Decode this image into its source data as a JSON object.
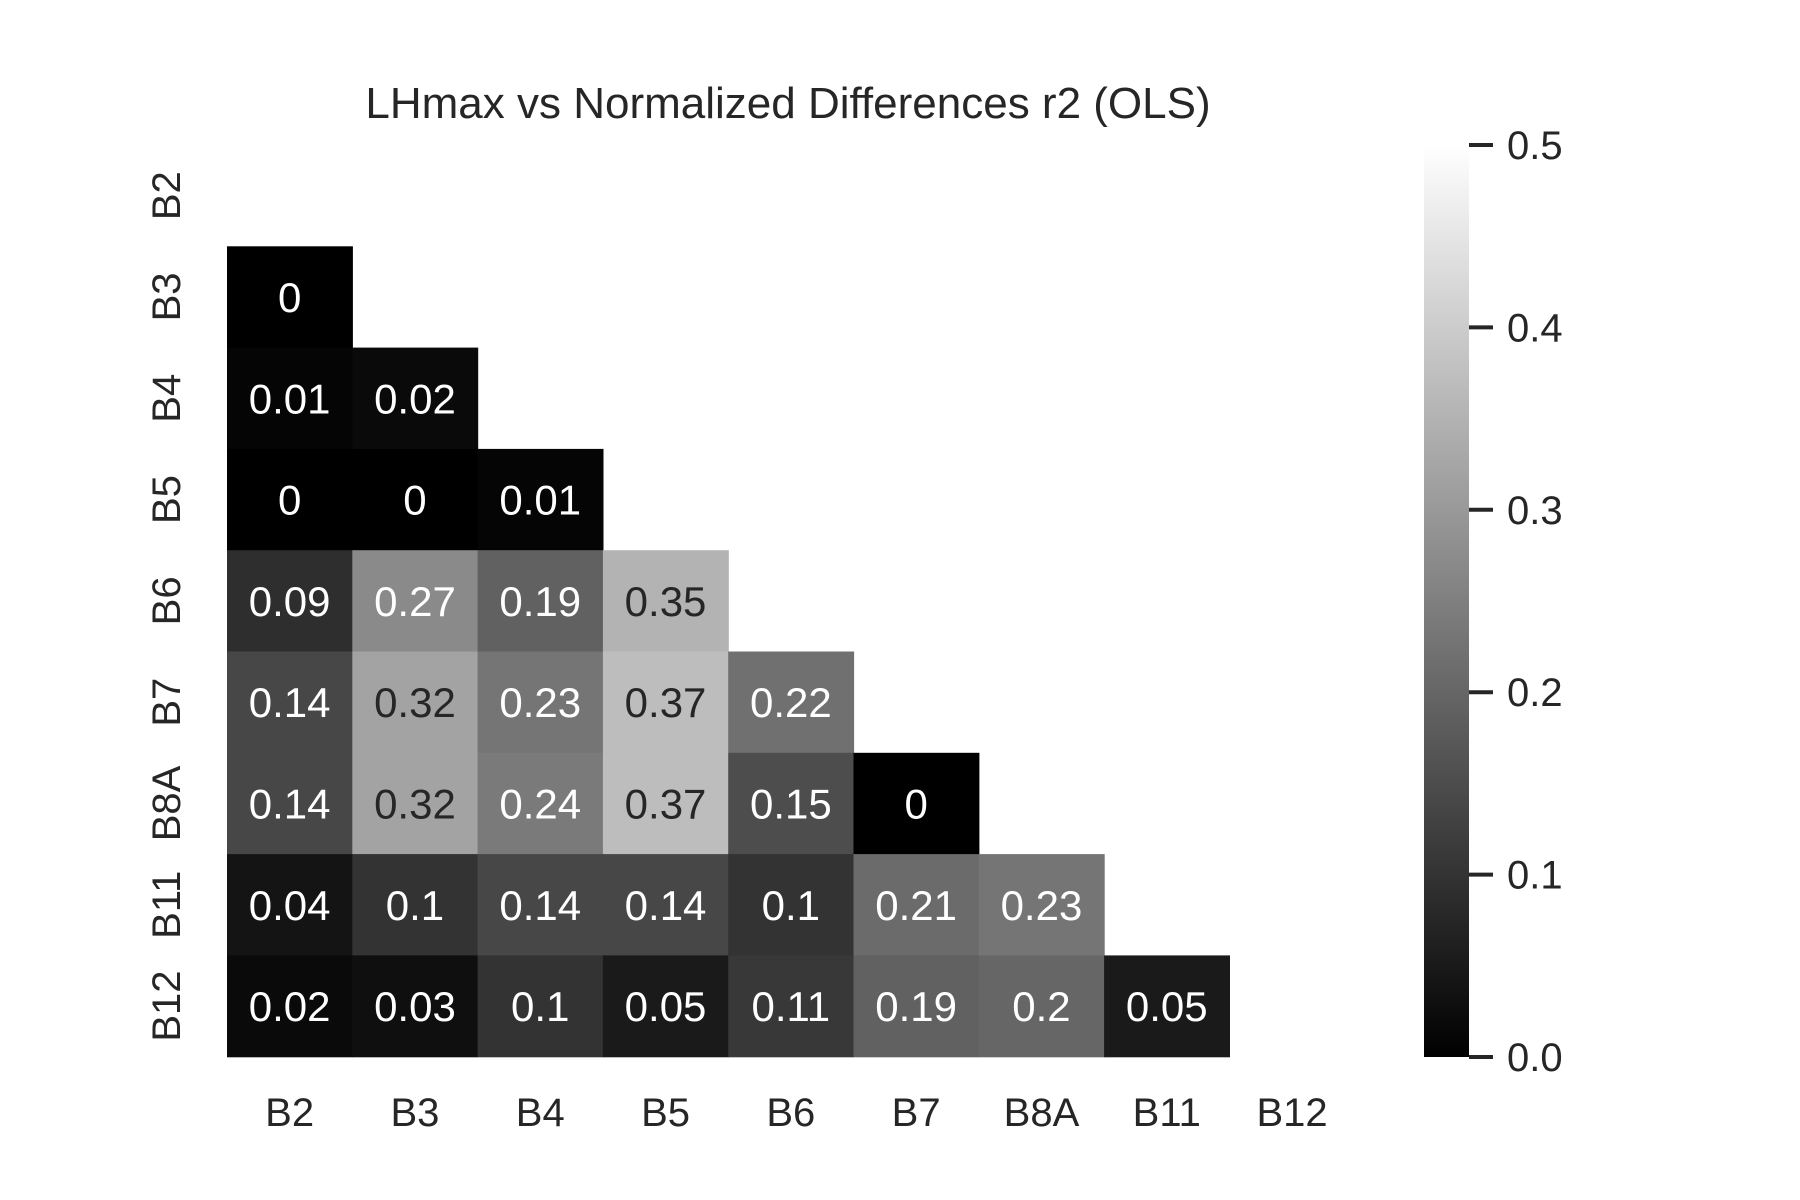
{
  "chart_data": {
    "type": "heatmap",
    "title": "LHmax vs Normalized Differences r2 (OLS)",
    "xlabel": "",
    "ylabel": "",
    "x_categories": [
      "B2",
      "B3",
      "B4",
      "B5",
      "B6",
      "B7",
      "B8A",
      "B11",
      "B12"
    ],
    "y_categories": [
      "B2",
      "B3",
      "B4",
      "B5",
      "B6",
      "B7",
      "B8A",
      "B11",
      "B12"
    ],
    "mask": "upper triangle incl. diagonal",
    "values": [
      [
        null,
        null,
        null,
        null,
        null,
        null,
        null,
        null,
        null
      ],
      [
        0,
        null,
        null,
        null,
        null,
        null,
        null,
        null,
        null
      ],
      [
        0.01,
        0.02,
        null,
        null,
        null,
        null,
        null,
        null,
        null
      ],
      [
        0,
        0,
        0.01,
        null,
        null,
        null,
        null,
        null,
        null
      ],
      [
        0.09,
        0.27,
        0.19,
        0.35,
        null,
        null,
        null,
        null,
        null
      ],
      [
        0.14,
        0.32,
        0.23,
        0.37,
        0.22,
        null,
        null,
        null,
        null
      ],
      [
        0.14,
        0.32,
        0.24,
        0.37,
        0.15,
        0,
        null,
        null,
        null
      ],
      [
        0.04,
        0.1,
        0.14,
        0.14,
        0.1,
        0.21,
        0.23,
        null,
        null
      ],
      [
        0.02,
        0.03,
        0.1,
        0.05,
        0.11,
        0.19,
        0.2,
        0.05,
        null
      ]
    ],
    "colormap": "greys_r (black to white)",
    "colorbar": {
      "vmin": 0,
      "vmax": 0.5,
      "ticks": [
        "0.0",
        "0.1",
        "0.2",
        "0.3",
        "0.4",
        "0.5"
      ]
    },
    "annotation_colors": {
      "on_dark": "#ffffff",
      "on_light": "#262626"
    }
  }
}
